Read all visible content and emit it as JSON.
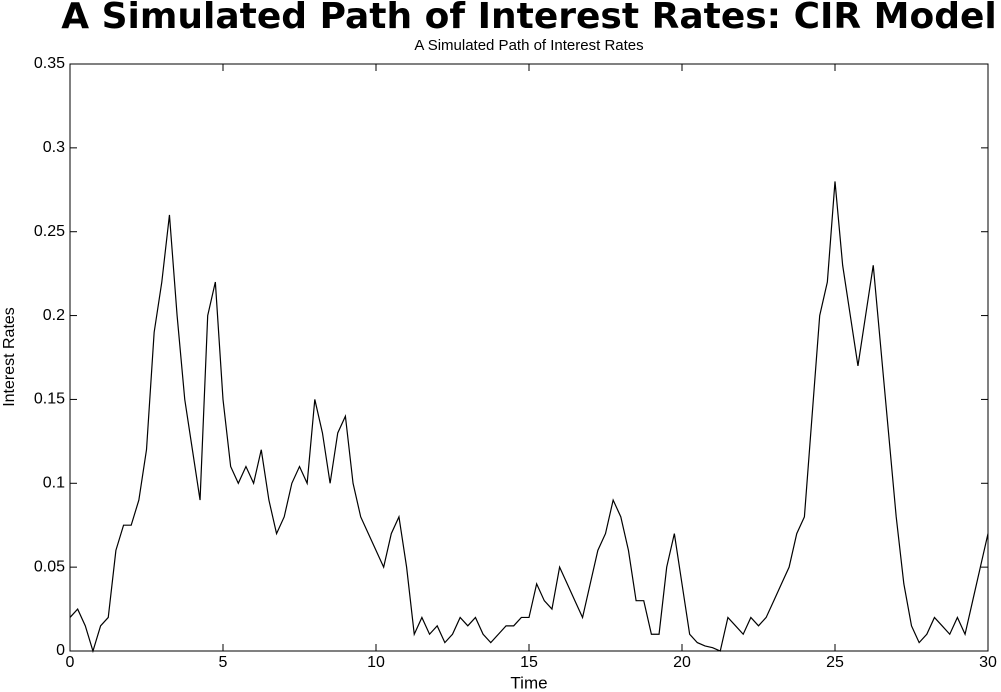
{
  "chart_data": {
    "type": "line",
    "title": "A Simulated Path of Interest Rates: CIR Model",
    "subtitle": "A Simulated Path of Interest Rates",
    "x_label": "Time",
    "y_label": "Interest Rates",
    "color": "#000000",
    "x": [
      0,
      0.25,
      0.5,
      0.75,
      1,
      1.25,
      1.5,
      1.75,
      2,
      2.25,
      2.5,
      2.75,
      3,
      3.25,
      3.5,
      3.75,
      4,
      4.25,
      4.5,
      4.75,
      5,
      5.25,
      5.5,
      5.75,
      6,
      6.25,
      6.5,
      6.75,
      7,
      7.25,
      7.5,
      7.75,
      8,
      8.25,
      8.5,
      8.75,
      9,
      9.25,
      9.5,
      9.75,
      10,
      10.25,
      10.5,
      10.75,
      11,
      11.25,
      11.5,
      11.75,
      12,
      12.25,
      12.5,
      12.75,
      13,
      13.25,
      13.5,
      13.75,
      14,
      14.25,
      14.5,
      14.75,
      15,
      15.25,
      15.5,
      15.75,
      16,
      16.25,
      16.5,
      16.75,
      17,
      17.25,
      17.5,
      17.75,
      18,
      18.25,
      18.5,
      18.75,
      19,
      19.25,
      19.5,
      19.75,
      20,
      20.25,
      20.5,
      20.75,
      21,
      21.25,
      21.5,
      21.75,
      22,
      22.25,
      22.5,
      22.75,
      23,
      23.25,
      23.5,
      23.75,
      24,
      24.25,
      24.5,
      24.75,
      25,
      25.25,
      25.5,
      25.75,
      26,
      26.25,
      26.5,
      26.75,
      27,
      27.25,
      27.5,
      27.75,
      28,
      28.25,
      28.5,
      28.75,
      29,
      29.25,
      29.5,
      29.75,
      30
    ],
    "values": [
      0.02,
      0.025,
      0.015,
      0.0,
      0.015,
      0.02,
      0.06,
      0.075,
      0.075,
      0.09,
      0.12,
      0.19,
      0.22,
      0.26,
      0.2,
      0.15,
      0.12,
      0.09,
      0.2,
      0.22,
      0.15,
      0.11,
      0.1,
      0.11,
      0.1,
      0.12,
      0.09,
      0.07,
      0.08,
      0.1,
      0.11,
      0.1,
      0.15,
      0.13,
      0.1,
      0.13,
      0.14,
      0.1,
      0.08,
      0.07,
      0.06,
      0.05,
      0.07,
      0.08,
      0.05,
      0.01,
      0.02,
      0.01,
      0.015,
      0.005,
      0.01,
      0.02,
      0.015,
      0.02,
      0.01,
      0.005,
      0.01,
      0.015,
      0.015,
      0.02,
      0.02,
      0.04,
      0.03,
      0.025,
      0.05,
      0.04,
      0.03,
      0.02,
      0.04,
      0.06,
      0.07,
      0.09,
      0.08,
      0.06,
      0.03,
      0.03,
      0.01,
      0.01,
      0.05,
      0.07,
      0.04,
      0.01,
      0.005,
      0.003,
      0.002,
      0.0,
      0.02,
      0.015,
      0.01,
      0.02,
      0.015,
      0.02,
      0.03,
      0.04,
      0.05,
      0.07,
      0.08,
      0.14,
      0.2,
      0.22,
      0.28,
      0.23,
      0.2,
      0.17,
      0.2,
      0.23,
      0.18,
      0.13,
      0.08,
      0.04,
      0.015,
      0.005,
      0.01,
      0.02,
      0.015,
      0.01,
      0.02,
      0.01,
      0.03,
      0.05,
      0.07
    ],
    "xlim": [
      0,
      30
    ],
    "ylim": [
      0,
      0.35
    ],
    "xticks": [
      0,
      5,
      10,
      15,
      20,
      25,
      30
    ],
    "yticks": [
      0,
      0.05,
      0.1,
      0.15,
      0.2,
      0.25,
      0.3,
      0.35
    ]
  }
}
